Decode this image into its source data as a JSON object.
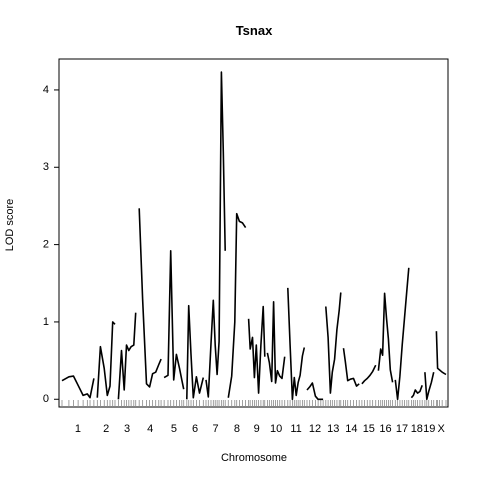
{
  "chart_data": {
    "type": "line",
    "title": "Tsnax",
    "xlabel": "Chromosome",
    "ylabel": "LOD score",
    "ylim": [
      -0.1,
      4.4
    ],
    "y_ticks": [
      0,
      1,
      2,
      3,
      4
    ],
    "grid": false,
    "legend": "none",
    "line_color": "#000000",
    "chromosomes": [
      {
        "label": "1",
        "span": [
          0.0,
          0.083
        ]
      },
      {
        "label": "2",
        "span": [
          0.092,
          0.138
        ]
      },
      {
        "label": "3",
        "span": [
          0.147,
          0.192
        ]
      },
      {
        "label": "4",
        "span": [
          0.201,
          0.258
        ]
      },
      {
        "label": "5",
        "span": [
          0.266,
          0.317
        ]
      },
      {
        "label": "6",
        "span": [
          0.325,
          0.368
        ]
      },
      {
        "label": "7",
        "span": [
          0.375,
          0.425
        ]
      },
      {
        "label": "8",
        "span": [
          0.433,
          0.478
        ]
      },
      {
        "label": "9",
        "span": [
          0.486,
          0.528
        ]
      },
      {
        "label": "10",
        "span": [
          0.535,
          0.58
        ]
      },
      {
        "label": "11",
        "span": [
          0.588,
          0.631
        ]
      },
      {
        "label": "12",
        "span": [
          0.638,
          0.68
        ]
      },
      {
        "label": "13",
        "span": [
          0.687,
          0.726
        ]
      },
      {
        "label": "14",
        "span": [
          0.733,
          0.774
        ]
      },
      {
        "label": "15",
        "span": [
          0.781,
          0.817
        ]
      },
      {
        "label": "16",
        "span": [
          0.824,
          0.861
        ]
      },
      {
        "label": "17",
        "span": [
          0.868,
          0.903
        ]
      },
      {
        "label": "18",
        "span": [
          0.91,
          0.938
        ]
      },
      {
        "label": "19",
        "span": [
          0.945,
          0.968
        ]
      },
      {
        "label": "X",
        "span": [
          0.975,
          1.0
        ]
      }
    ],
    "series": [
      {
        "chr": "1",
        "x": [
          0.0,
          0.018,
          0.03,
          0.042,
          0.055,
          0.066,
          0.073,
          0.083
        ],
        "y": [
          0.24,
          0.29,
          0.3,
          0.18,
          0.05,
          0.07,
          0.02,
          0.27
        ]
      },
      {
        "chr": "2",
        "x": [
          0.092,
          0.1,
          0.11,
          0.118,
          0.125,
          0.132,
          0.138
        ],
        "y": [
          0.02,
          0.68,
          0.4,
          0.05,
          0.17,
          1.0,
          0.97
        ]
      },
      {
        "chr": "3",
        "x": [
          0.147,
          0.155,
          0.162,
          0.168,
          0.174,
          0.18,
          0.187,
          0.192
        ],
        "y": [
          0.0,
          0.63,
          0.12,
          0.7,
          0.63,
          0.68,
          0.7,
          1.12
        ]
      },
      {
        "chr": "4",
        "x": [
          0.201,
          0.21,
          0.22,
          0.228,
          0.236,
          0.244,
          0.252,
          0.258
        ],
        "y": [
          2.47,
          1.3,
          0.2,
          0.16,
          0.33,
          0.35,
          0.45,
          0.52
        ]
      },
      {
        "chr": "5",
        "x": [
          0.266,
          0.276,
          0.283,
          0.291,
          0.298,
          0.306,
          0.312,
          0.317
        ],
        "y": [
          0.28,
          0.31,
          1.92,
          0.25,
          0.58,
          0.4,
          0.25,
          0.13
        ]
      },
      {
        "chr": "6",
        "x": [
          0.325,
          0.33,
          0.336,
          0.342,
          0.35,
          0.358,
          0.368
        ],
        "y": [
          0.0,
          1.21,
          0.58,
          0.02,
          0.29,
          0.08,
          0.28
        ]
      },
      {
        "chr": "7",
        "x": [
          0.375,
          0.381,
          0.388,
          0.394,
          0.399,
          0.404,
          0.409,
          0.415,
          0.42,
          0.425
        ],
        "y": [
          0.25,
          0.03,
          0.72,
          1.28,
          0.7,
          0.32,
          0.75,
          4.23,
          3.2,
          1.92
        ]
      },
      {
        "chr": "8",
        "x": [
          0.433,
          0.442,
          0.45,
          0.455,
          0.462,
          0.47,
          0.478
        ],
        "y": [
          0.02,
          0.3,
          1.0,
          2.4,
          2.3,
          2.28,
          2.22
        ]
      },
      {
        "chr": "9",
        "x": [
          0.486,
          0.49,
          0.496,
          0.501,
          0.506,
          0.512,
          0.518,
          0.524,
          0.528
        ],
        "y": [
          1.04,
          0.65,
          0.8,
          0.28,
          0.7,
          0.08,
          0.7,
          1.2,
          0.55
        ]
      },
      {
        "chr": "10",
        "x": [
          0.535,
          0.54,
          0.546,
          0.551,
          0.556,
          0.561,
          0.567,
          0.573,
          0.58
        ],
        "y": [
          0.6,
          0.47,
          0.23,
          1.26,
          0.21,
          0.37,
          0.3,
          0.27,
          0.55
        ]
      },
      {
        "chr": "11",
        "x": [
          0.588,
          0.594,
          0.6,
          0.605,
          0.61,
          0.615,
          0.62,
          0.626,
          0.631
        ],
        "y": [
          1.44,
          0.7,
          0.0,
          0.28,
          0.05,
          0.22,
          0.31,
          0.56,
          0.67
        ]
      },
      {
        "chr": "12",
        "x": [
          0.638,
          0.645,
          0.652,
          0.66,
          0.667,
          0.674,
          0.68
        ],
        "y": [
          0.12,
          0.16,
          0.21,
          0.04,
          0.0,
          0.0,
          0.0
        ]
      },
      {
        "chr": "13",
        "x": [
          0.687,
          0.693,
          0.699,
          0.704,
          0.71,
          0.716,
          0.722,
          0.726
        ],
        "y": [
          1.2,
          0.8,
          0.08,
          0.35,
          0.52,
          0.9,
          1.15,
          1.38
        ]
      },
      {
        "chr": "14",
        "x": [
          0.733,
          0.738,
          0.744,
          0.751,
          0.759,
          0.767,
          0.774
        ],
        "y": [
          0.66,
          0.48,
          0.24,
          0.26,
          0.27,
          0.17,
          0.2
        ]
      },
      {
        "chr": "15",
        "x": [
          0.781,
          0.788,
          0.795,
          0.802,
          0.809,
          0.817
        ],
        "y": [
          0.2,
          0.24,
          0.27,
          0.31,
          0.36,
          0.44
        ]
      },
      {
        "chr": "16",
        "x": [
          0.824,
          0.83,
          0.835,
          0.84,
          0.845,
          0.85,
          0.855,
          0.861
        ],
        "y": [
          0.37,
          0.65,
          0.57,
          1.37,
          1.05,
          0.78,
          0.38,
          0.22
        ]
      },
      {
        "chr": "17",
        "x": [
          0.868,
          0.874,
          0.88,
          0.886,
          0.892,
          0.898,
          0.903
        ],
        "y": [
          0.25,
          0.0,
          0.3,
          0.7,
          1.05,
          1.4,
          1.7
        ]
      },
      {
        "chr": "18",
        "x": [
          0.91,
          0.915,
          0.92,
          0.926,
          0.932,
          0.938
        ],
        "y": [
          0.02,
          0.05,
          0.12,
          0.08,
          0.1,
          0.18
        ]
      },
      {
        "chr": "19",
        "x": [
          0.945,
          0.95,
          0.955,
          0.962,
          0.968
        ],
        "y": [
          0.35,
          0.0,
          0.1,
          0.22,
          0.35
        ]
      },
      {
        "chr": "X",
        "x": [
          0.975,
          0.978,
          0.983,
          0.99,
          1.0
        ],
        "y": [
          0.88,
          0.4,
          0.38,
          0.35,
          0.32
        ]
      }
    ]
  }
}
